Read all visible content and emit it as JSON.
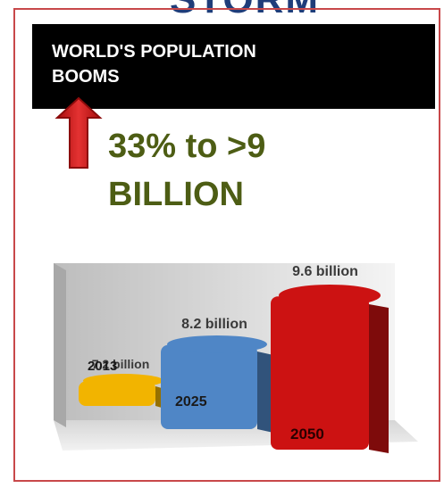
{
  "header": {
    "partial_title": "STORM"
  },
  "banner": {
    "line1": "WORLD'S POPULATION",
    "line2": "BOOMS"
  },
  "stat": {
    "line1": "33% to >9",
    "line2": "BILLION"
  },
  "icons": {
    "arrow": "red-up-arrow-icon"
  },
  "colors": {
    "banner": "#000000",
    "stat_text": "#4d5d14",
    "frame": "#c8484a"
  },
  "chart_data": {
    "type": "bar",
    "categories": [
      "2013",
      "2025",
      "2050"
    ],
    "values": [
      7.2,
      8.2,
      9.6
    ],
    "value_labels": [
      "7.2 billion",
      "8.2 billion",
      "9.6 billion"
    ],
    "colors": [
      "#f2b400",
      "#4f86c6",
      "#cc1212"
    ],
    "unit": "billion",
    "ylim": [
      5.5,
      9.6
    ],
    "grid": false,
    "legend": "none"
  }
}
